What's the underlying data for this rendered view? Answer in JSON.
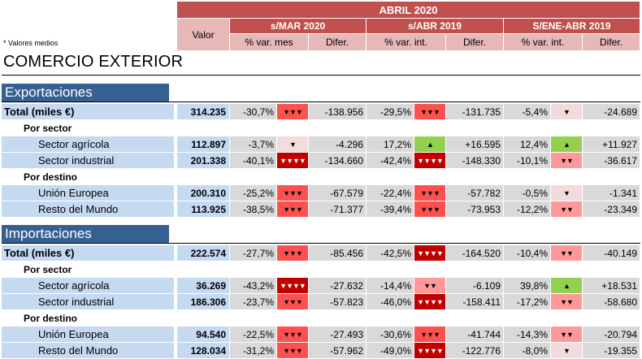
{
  "header": {
    "period": "ABRIL 2020",
    "valor_label": "Valor",
    "groups": [
      {
        "title": "s/MAR 2020",
        "col1": "% var. mes",
        "col2": "Difer."
      },
      {
        "title": "s/ABR 2019",
        "col1": "% var. int.",
        "col2": "Difer."
      },
      {
        "title": "S/ENE-ABR 2019",
        "col1": "% var. int.",
        "col2": "Difer."
      }
    ]
  },
  "note": "* Valores medios",
  "title": "COMERCIO EXTERIOR",
  "sections": [
    {
      "title": "Exportaciones",
      "total": {
        "label": "Total (miles €)",
        "valor": "314.235",
        "g": [
          {
            "pct": "-30,7%",
            "ind": "▼▼▼",
            "lvl": "dec3",
            "dif": "-138.956"
          },
          {
            "pct": "-29,5%",
            "ind": "▼▼▼",
            "lvl": "dec3",
            "dif": "-131.735"
          },
          {
            "pct": "-5,4%",
            "ind": "▼",
            "lvl": "dec1",
            "dif": "-24.689"
          }
        ]
      },
      "sub1": "Por sector",
      "sector": [
        {
          "label": "Sector agrícola",
          "valor": "112.897",
          "g": [
            {
              "pct": "-3,7%",
              "ind": "▼",
              "lvl": "dec1",
              "dif": "-4.296"
            },
            {
              "pct": "17,2%",
              "ind": "▲",
              "lvl": "inc1",
              "dif": "+16.595"
            },
            {
              "pct": "12,4%",
              "ind": "▲",
              "lvl": "inc1",
              "dif": "+11.927"
            }
          ]
        },
        {
          "label": "Sector industrial",
          "valor": "201.338",
          "g": [
            {
              "pct": "-40,1%",
              "ind": "▼▼▼▼",
              "lvl": "dec3-strong",
              "dif": "-134.660"
            },
            {
              "pct": "-42,4%",
              "ind": "▼▼▼▼",
              "lvl": "dec3-strong",
              "dif": "-148.330"
            },
            {
              "pct": "-10,1%",
              "ind": "▼▼",
              "lvl": "dec2",
              "dif": "-36.617"
            }
          ]
        }
      ],
      "sub2": "Por destino",
      "destino": [
        {
          "label": "Unión Europea",
          "valor": "200.310",
          "g": [
            {
              "pct": "-25,2%",
              "ind": "▼▼▼",
              "lvl": "dec3",
              "dif": "-67.579"
            },
            {
              "pct": "-22,4%",
              "ind": "▼▼▼",
              "lvl": "dec3",
              "dif": "-57.782"
            },
            {
              "pct": "-0,5%",
              "ind": "▼",
              "lvl": "dec1",
              "dif": "-1.341"
            }
          ]
        },
        {
          "label": "Resto del Mundo",
          "valor": "113.925",
          "g": [
            {
              "pct": "-38,5%",
              "ind": "▼▼▼",
              "lvl": "dec3",
              "dif": "-71.377"
            },
            {
              "pct": "-39,4%",
              "ind": "▼▼▼",
              "lvl": "dec3",
              "dif": "-73.953"
            },
            {
              "pct": "-12,2%",
              "ind": "▼▼",
              "lvl": "dec2",
              "dif": "-23.349"
            }
          ]
        }
      ]
    },
    {
      "title": "Importaciones",
      "total": {
        "label": "Total (miles €)",
        "valor": "222.574",
        "g": [
          {
            "pct": "-27,7%",
            "ind": "▼▼▼",
            "lvl": "dec3",
            "dif": "-85.456"
          },
          {
            "pct": "-42,5%",
            "ind": "▼▼▼▼",
            "lvl": "dec3-strong",
            "dif": "-164.520"
          },
          {
            "pct": "-10,4%",
            "ind": "▼▼",
            "lvl": "dec2",
            "dif": "-40.149"
          }
        ]
      },
      "sub1": "Por sector",
      "sector": [
        {
          "label": "Sector agrícola",
          "valor": "36.269",
          "g": [
            {
              "pct": "-43,2%",
              "ind": "▼▼▼▼",
              "lvl": "dec3-strong",
              "dif": "-27.632"
            },
            {
              "pct": "-14,4%",
              "ind": "▼▼",
              "lvl": "dec2",
              "dif": "-6.109"
            },
            {
              "pct": "39,8%",
              "ind": "▲",
              "lvl": "inc1",
              "dif": "+18.531"
            }
          ]
        },
        {
          "label": "Sector industrial",
          "valor": "186.306",
          "g": [
            {
              "pct": "-23,7%",
              "ind": "▼▼▼",
              "lvl": "dec3",
              "dif": "-57.823"
            },
            {
              "pct": "-46,0%",
              "ind": "▼▼▼▼",
              "lvl": "dec3-strong",
              "dif": "-158.411"
            },
            {
              "pct": "-17,2%",
              "ind": "▼▼",
              "lvl": "dec2",
              "dif": "-58.680"
            }
          ]
        }
      ],
      "sub2": "Por destino",
      "destino": [
        {
          "label": "Unión Europea",
          "valor": "94.540",
          "g": [
            {
              "pct": "-22,5%",
              "ind": "▼▼▼",
              "lvl": "dec3",
              "dif": "-27.493"
            },
            {
              "pct": "-30,6%",
              "ind": "▼▼▼",
              "lvl": "dec3",
              "dif": "-41.744"
            },
            {
              "pct": "-14,3%",
              "ind": "▼▼",
              "lvl": "dec2",
              "dif": "-20.794"
            }
          ]
        },
        {
          "label": "Resto del Mundo",
          "valor": "128.034",
          "g": [
            {
              "pct": "-31,2%",
              "ind": "▼▼▼",
              "lvl": "dec3",
              "dif": "-57.962"
            },
            {
              "pct": "-49,0%",
              "ind": "▼▼▼▼",
              "lvl": "dec3-strong",
              "dif": "-122.776"
            },
            {
              "pct": "-8,0%",
              "ind": "▼",
              "lvl": "dec1",
              "dif": "-19.355"
            }
          ]
        }
      ]
    }
  ],
  "colors": {
    "header_dark": "#c0504d",
    "header_light": "#e6b8b7",
    "section": "#366092",
    "label_bg": "#c5d9f1",
    "number_bg": "#d9d9d9",
    "up": "#92d050",
    "down_strong": "#c00000",
    "down": "#ff5050"
  }
}
